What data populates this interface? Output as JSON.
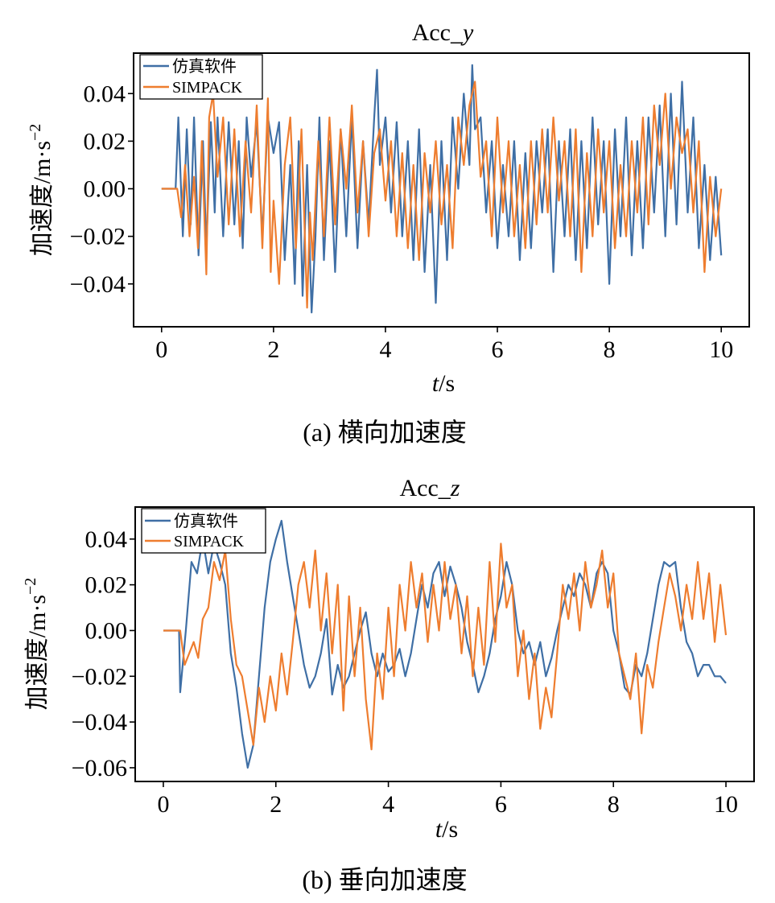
{
  "chart_data": [
    {
      "type": "line",
      "title": "Acc_y",
      "title_main": "Acc_",
      "title_var": "y",
      "xlabel": "t/s",
      "xlabel_var": "t",
      "xlabel_unit": "/s",
      "ylabel": "加速度/m·s⁻²",
      "ylabel_text": "加速度/m·s",
      "ylabel_sup": "−2",
      "xlim": [
        -0.5,
        10.5
      ],
      "ylim": [
        -0.058,
        0.057
      ],
      "xticks": [
        0,
        2,
        4,
        6,
        8,
        10
      ],
      "xtick_labels": [
        "0",
        "2",
        "4",
        "6",
        "8",
        "10"
      ],
      "yticks": [
        -0.04,
        -0.02,
        0.0,
        0.02,
        0.04
      ],
      "ytick_labels": [
        "−0.04",
        "−0.02",
        "0.00",
        "0.02",
        "0.04"
      ],
      "legend": "top-left",
      "grid": false,
      "caption": "(a)  横向加速度",
      "series": [
        {
          "name": "仿真软件",
          "color": "#3f6fa5",
          "x": [
            0,
            0.25,
            0.3,
            0.38,
            0.45,
            0.52,
            0.58,
            0.66,
            0.74,
            0.8,
            0.88,
            0.95,
            1.0,
            1.1,
            1.2,
            1.3,
            1.38,
            1.45,
            1.52,
            1.6,
            1.7,
            1.8,
            1.9,
            2.0,
            2.1,
            2.2,
            2.3,
            2.38,
            2.45,
            2.52,
            2.6,
            2.68,
            2.75,
            2.82,
            2.9,
            3.0,
            3.1,
            3.2,
            3.3,
            3.4,
            3.5,
            3.6,
            3.7,
            3.8,
            3.85,
            3.9,
            4.0,
            4.1,
            4.2,
            4.3,
            4.4,
            4.5,
            4.6,
            4.7,
            4.8,
            4.9,
            5.0,
            5.1,
            5.2,
            5.3,
            5.4,
            5.5,
            5.55,
            5.6,
            5.7,
            5.8,
            5.9,
            6.0,
            6.1,
            6.2,
            6.3,
            6.4,
            6.5,
            6.6,
            6.7,
            6.8,
            6.9,
            7.0,
            7.1,
            7.2,
            7.3,
            7.4,
            7.5,
            7.6,
            7.7,
            7.8,
            7.9,
            8.0,
            8.1,
            8.2,
            8.3,
            8.4,
            8.5,
            8.6,
            8.7,
            8.8,
            8.9,
            9.0,
            9.1,
            9.2,
            9.3,
            9.4,
            9.5,
            9.6,
            9.7,
            9.8,
            9.9,
            10.0
          ],
          "y": [
            0,
            0,
            0.03,
            -0.02,
            0.025,
            -0.015,
            0.03,
            -0.028,
            0.02,
            -0.025,
            0.028,
            -0.01,
            0.03,
            -0.02,
            0.028,
            -0.015,
            0.02,
            -0.025,
            0.03,
            0.005,
            0.028,
            -0.02,
            0.03,
            0.015,
            0.028,
            -0.03,
            0.01,
            -0.04,
            0.02,
            -0.045,
            0.01,
            -0.052,
            -0.02,
            0.03,
            -0.03,
            0.02,
            -0.035,
            0.025,
            -0.02,
            0.03,
            -0.025,
            0.02,
            -0.015,
            0.03,
            0.05,
            0.01,
            0.03,
            -0.01,
            0.028,
            -0.02,
            0.02,
            -0.03,
            0.025,
            -0.035,
            0.01,
            -0.048,
            0.02,
            -0.03,
            0.03,
            0.0,
            0.04,
            0.01,
            0.052,
            0.025,
            0.03,
            -0.01,
            0.02,
            -0.025,
            0.01,
            -0.02,
            0.02,
            -0.03,
            0.015,
            -0.025,
            0.02,
            -0.01,
            0.025,
            -0.035,
            0.02,
            -0.02,
            0.025,
            -0.03,
            0.02,
            -0.025,
            0.03,
            -0.015,
            0.02,
            -0.04,
            0.025,
            -0.02,
            0.03,
            -0.028,
            0.02,
            -0.025,
            0.03,
            -0.01,
            0.035,
            -0.02,
            0.04,
            -0.015,
            0.045,
            -0.01,
            0.03,
            -0.025,
            0.01,
            -0.03,
            0.005,
            -0.028
          ]
        },
        {
          "name": "SIMPACK",
          "color": "#ee7d2f",
          "x": [
            0,
            0.28,
            0.35,
            0.42,
            0.5,
            0.58,
            0.65,
            0.72,
            0.8,
            0.85,
            0.92,
            1.0,
            1.1,
            1.2,
            1.3,
            1.4,
            1.5,
            1.6,
            1.7,
            1.8,
            1.9,
            1.95,
            2.0,
            2.1,
            2.2,
            2.3,
            2.4,
            2.5,
            2.6,
            2.65,
            2.7,
            2.8,
            2.9,
            3.0,
            3.1,
            3.2,
            3.3,
            3.4,
            3.5,
            3.6,
            3.7,
            3.8,
            3.9,
            4.0,
            4.1,
            4.2,
            4.3,
            4.4,
            4.5,
            4.6,
            4.7,
            4.8,
            4.9,
            5.0,
            5.1,
            5.2,
            5.3,
            5.4,
            5.5,
            5.6,
            5.7,
            5.8,
            5.9,
            6.0,
            6.1,
            6.2,
            6.3,
            6.4,
            6.5,
            6.6,
            6.7,
            6.8,
            6.9,
            7.0,
            7.1,
            7.2,
            7.3,
            7.4,
            7.5,
            7.6,
            7.7,
            7.8,
            7.9,
            8.0,
            8.1,
            8.2,
            8.3,
            8.4,
            8.5,
            8.6,
            8.7,
            8.8,
            8.9,
            9.0,
            9.1,
            9.2,
            9.3,
            9.4,
            9.5,
            9.6,
            9.7,
            9.8,
            9.9,
            10.0
          ],
          "y": [
            0,
            0,
            -0.012,
            0.01,
            -0.02,
            0.005,
            -0.025,
            0.02,
            -0.036,
            0.03,
            0.04,
            0.005,
            0.03,
            -0.015,
            0.025,
            -0.02,
            0.02,
            -0.01,
            0.035,
            -0.025,
            0.038,
            -0.035,
            -0.005,
            -0.04,
            0.01,
            0.03,
            -0.025,
            0.025,
            -0.05,
            -0.01,
            -0.03,
            0.02,
            -0.02,
            0.03,
            -0.015,
            0.025,
            0.0,
            0.035,
            -0.01,
            0.02,
            -0.02,
            0.015,
            0.025,
            -0.005,
            0.02,
            -0.02,
            0.015,
            -0.025,
            0.01,
            -0.03,
            0.015,
            -0.01,
            0.02,
            -0.015,
            0.01,
            -0.025,
            0.03,
            0.01,
            0.035,
            0.045,
            0.005,
            0.02,
            -0.02,
            0.03,
            -0.01,
            0.02,
            -0.02,
            0.01,
            -0.025,
            0.02,
            -0.015,
            0.025,
            -0.01,
            0.03,
            -0.005,
            0.02,
            -0.02,
            0.025,
            -0.035,
            0.015,
            -0.02,
            0.025,
            -0.01,
            0.02,
            -0.025,
            0.01,
            -0.02,
            0.02,
            -0.01,
            0.03,
            -0.015,
            0.035,
            0.01,
            0.04,
            0.0,
            0.03,
            0.015,
            0.025,
            -0.01,
            0.02,
            -0.035,
            0.005,
            -0.02,
            0.0
          ]
        }
      ]
    },
    {
      "type": "line",
      "title": "Acc_z",
      "title_main": "Acc_",
      "title_var": "z",
      "xlabel": "t/s",
      "xlabel_var": "t",
      "xlabel_unit": "/s",
      "ylabel": "加速度/m·s⁻²",
      "ylabel_text": "加速度/m·s",
      "ylabel_sup": "−2",
      "xlim": [
        -0.5,
        10.5
      ],
      "ylim": [
        -0.066,
        0.054
      ],
      "xticks": [
        0,
        2,
        4,
        6,
        8,
        10
      ],
      "xtick_labels": [
        "0",
        "2",
        "4",
        "6",
        "8",
        "10"
      ],
      "yticks": [
        -0.06,
        -0.04,
        -0.02,
        0.0,
        0.02,
        0.04
      ],
      "ytick_labels": [
        "−0.06",
        "−0.04",
        "−0.02",
        "0.00",
        "0.02",
        "0.04"
      ],
      "legend": "top-left",
      "grid": false,
      "caption": "(b)  垂向加速度",
      "series": [
        {
          "name": "仿真软件",
          "color": "#3f6fa5",
          "x": [
            0,
            0.28,
            0.3,
            0.4,
            0.5,
            0.6,
            0.7,
            0.8,
            0.9,
            1.0,
            1.1,
            1.2,
            1.3,
            1.4,
            1.5,
            1.6,
            1.7,
            1.8,
            1.9,
            2.0,
            2.1,
            2.2,
            2.3,
            2.4,
            2.5,
            2.6,
            2.7,
            2.8,
            2.9,
            3.0,
            3.1,
            3.2,
            3.3,
            3.4,
            3.5,
            3.6,
            3.7,
            3.8,
            3.9,
            4.0,
            4.1,
            4.2,
            4.3,
            4.4,
            4.5,
            4.6,
            4.7,
            4.8,
            4.9,
            5.0,
            5.1,
            5.2,
            5.3,
            5.4,
            5.5,
            5.6,
            5.7,
            5.8,
            5.9,
            6.0,
            6.1,
            6.2,
            6.3,
            6.4,
            6.5,
            6.6,
            6.7,
            6.8,
            6.9,
            7.0,
            7.1,
            7.2,
            7.3,
            7.4,
            7.5,
            7.6,
            7.7,
            7.8,
            7.9,
            8.0,
            8.1,
            8.2,
            8.3,
            8.4,
            8.5,
            8.6,
            8.7,
            8.8,
            8.9,
            9.0,
            9.1,
            9.2,
            9.3,
            9.4,
            9.5,
            9.6,
            9.7,
            9.8,
            9.9,
            10.0
          ],
          "y": [
            0,
            0,
            -0.027,
            0.0,
            0.03,
            0.025,
            0.04,
            0.025,
            0.038,
            0.03,
            0.02,
            -0.01,
            -0.025,
            -0.045,
            -0.06,
            -0.05,
            -0.02,
            0.01,
            0.03,
            0.04,
            0.048,
            0.03,
            0.015,
            0.0,
            -0.015,
            -0.025,
            -0.02,
            -0.01,
            0.005,
            -0.028,
            -0.015,
            -0.025,
            -0.02,
            -0.01,
            0.0,
            0.008,
            -0.01,
            -0.02,
            -0.01,
            -0.018,
            -0.015,
            -0.008,
            -0.02,
            -0.01,
            0.005,
            0.02,
            0.01,
            0.025,
            0.03,
            0.015,
            0.028,
            0.02,
            0.01,
            -0.005,
            -0.015,
            -0.027,
            -0.02,
            -0.01,
            0.005,
            0.015,
            0.03,
            0.02,
            0.0,
            -0.01,
            -0.005,
            -0.015,
            -0.005,
            -0.02,
            -0.012,
            0.0,
            0.01,
            0.02,
            0.015,
            0.025,
            0.02,
            0.01,
            0.025,
            0.03,
            0.025,
            0.0,
            -0.01,
            -0.025,
            -0.028,
            -0.015,
            -0.02,
            -0.01,
            0.005,
            0.02,
            0.03,
            0.028,
            0.03,
            0.01,
            -0.005,
            -0.01,
            -0.02,
            -0.015,
            -0.015,
            -0.02,
            -0.02,
            -0.023
          ]
        },
        {
          "name": "SIMPACK",
          "color": "#ee7d2f",
          "x": [
            0,
            0.3,
            0.38,
            0.46,
            0.54,
            0.62,
            0.7,
            0.8,
            0.9,
            1.0,
            1.1,
            1.2,
            1.3,
            1.4,
            1.5,
            1.6,
            1.7,
            1.8,
            1.9,
            2.0,
            2.1,
            2.2,
            2.3,
            2.4,
            2.5,
            2.6,
            2.7,
            2.8,
            2.9,
            3.0,
            3.1,
            3.2,
            3.3,
            3.4,
            3.5,
            3.6,
            3.7,
            3.8,
            3.9,
            4.0,
            4.1,
            4.2,
            4.3,
            4.4,
            4.5,
            4.6,
            4.7,
            4.8,
            4.9,
            5.0,
            5.1,
            5.2,
            5.3,
            5.4,
            5.5,
            5.6,
            5.7,
            5.8,
            5.9,
            6.0,
            6.1,
            6.2,
            6.3,
            6.4,
            6.5,
            6.6,
            6.7,
            6.8,
            6.9,
            7.0,
            7.1,
            7.2,
            7.3,
            7.4,
            7.5,
            7.6,
            7.7,
            7.8,
            7.9,
            8.0,
            8.1,
            8.2,
            8.3,
            8.4,
            8.5,
            8.6,
            8.7,
            8.8,
            8.9,
            9.0,
            9.1,
            9.2,
            9.3,
            9.4,
            9.5,
            9.6,
            9.7,
            9.8,
            9.9,
            10.0
          ],
          "y": [
            0,
            0,
            -0.015,
            -0.01,
            -0.005,
            -0.012,
            0.005,
            0.01,
            0.03,
            0.022,
            0.035,
            0.005,
            -0.015,
            -0.02,
            -0.035,
            -0.05,
            -0.025,
            -0.04,
            -0.02,
            -0.035,
            -0.01,
            -0.028,
            -0.005,
            0.02,
            0.03,
            0.01,
            0.035,
            0.0,
            0.025,
            -0.01,
            0.02,
            -0.035,
            0.015,
            -0.02,
            0.01,
            -0.03,
            -0.052,
            -0.01,
            -0.03,
            0.01,
            -0.02,
            0.02,
            0.0,
            0.03,
            0.01,
            0.025,
            -0.005,
            0.02,
            0.0,
            0.03,
            0.005,
            0.02,
            -0.01,
            0.015,
            -0.02,
            0.01,
            -0.015,
            0.03,
            -0.005,
            0.038,
            0.01,
            0.02,
            -0.02,
            0.0,
            -0.03,
            -0.01,
            -0.043,
            -0.025,
            -0.038,
            -0.01,
            0.02,
            0.005,
            0.025,
            0.0,
            0.03,
            0.01,
            0.02,
            0.035,
            0.01,
            0.025,
            -0.01,
            -0.02,
            -0.03,
            -0.01,
            -0.045,
            -0.015,
            -0.025,
            -0.005,
            0.01,
            0.025,
            0.015,
            0.0,
            0.02,
            0.005,
            0.03,
            0.005,
            0.025,
            -0.005,
            0.02,
            -0.002
          ]
        }
      ]
    }
  ]
}
